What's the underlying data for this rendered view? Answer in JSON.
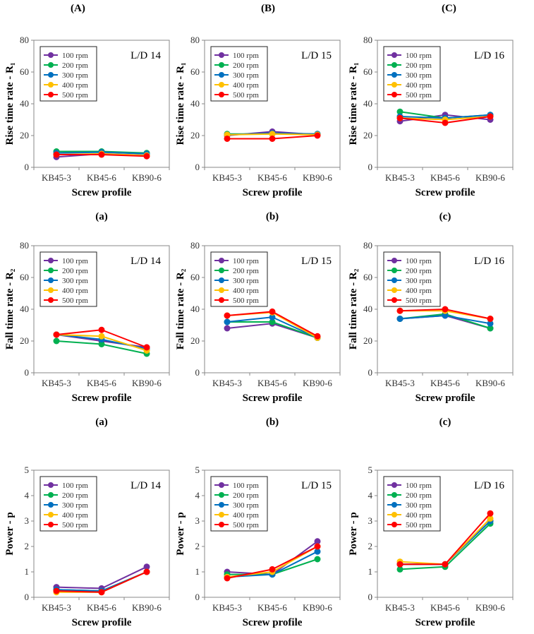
{
  "column_headers": [
    "(A)",
    "(B)",
    "(C)"
  ],
  "colors": {
    "100 rpm": "#7030A0",
    "200 rpm": "#00B050",
    "300 rpm": "#0070C0",
    "400 rpm": "#FFC000",
    "500 rpm": "#FF0000"
  },
  "chart_data": [
    {
      "type": "line",
      "panel_label": "(a)",
      "annotation": "L/D 14",
      "xlabel": "Screw profile",
      "ylabel": "Rise time rate - R₁",
      "ylim": [
        0,
        80
      ],
      "yticks": [
        0,
        20,
        40,
        60,
        80
      ],
      "categories": [
        "KB45-3",
        "KB45-6",
        "KB90-6"
      ],
      "series": [
        {
          "name": "100 rpm",
          "values": [
            6.5,
            8.5,
            7.5
          ]
        },
        {
          "name": "200 rpm",
          "values": [
            10,
            10,
            9
          ]
        },
        {
          "name": "300 rpm",
          "values": [
            9,
            9.5,
            8.5
          ]
        },
        {
          "name": "400 rpm",
          "values": [
            8,
            8.5,
            7.5
          ]
        },
        {
          "name": "500 rpm",
          "values": [
            8,
            8,
            7
          ]
        }
      ]
    },
    {
      "type": "line",
      "panel_label": "(b)",
      "annotation": "L/D 15",
      "xlabel": "Screw profile",
      "ylabel": "Rise time rate - R₁",
      "ylim": [
        0,
        80
      ],
      "yticks": [
        0,
        20,
        40,
        60,
        80
      ],
      "categories": [
        "KB45-3",
        "KB45-6",
        "KB90-6"
      ],
      "series": [
        {
          "name": "100 rpm",
          "values": [
            20,
            22.5,
            20.5
          ]
        },
        {
          "name": "200 rpm",
          "values": [
            21,
            21,
            21
          ]
        },
        {
          "name": "300 rpm",
          "values": [
            20.5,
            21.5,
            21
          ]
        },
        {
          "name": "400 rpm",
          "values": [
            20.5,
            21,
            20.5
          ]
        },
        {
          "name": "500 rpm",
          "values": [
            18,
            18,
            20
          ]
        }
      ]
    },
    {
      "type": "line",
      "panel_label": "(c)",
      "annotation": "L/D 16",
      "xlabel": "Screw profile",
      "ylabel": "Rise time rate - R₁",
      "ylim": [
        0,
        80
      ],
      "yticks": [
        0,
        20,
        40,
        60,
        80
      ],
      "categories": [
        "KB45-3",
        "KB45-6",
        "KB90-6"
      ],
      "series": [
        {
          "name": "100 rpm",
          "values": [
            29,
            33,
            30
          ]
        },
        {
          "name": "200 rpm",
          "values": [
            35,
            31,
            33
          ]
        },
        {
          "name": "300 rpm",
          "values": [
            32,
            31,
            33
          ]
        },
        {
          "name": "400 rpm",
          "values": [
            31,
            30,
            32
          ]
        },
        {
          "name": "500 rpm",
          "values": [
            31,
            28,
            32
          ]
        }
      ]
    },
    {
      "type": "line",
      "panel_label": "(a)",
      "annotation": "L/D 14",
      "xlabel": "Screw profile",
      "ylabel": "Fall time rate - R₂",
      "ylim": [
        0,
        80
      ],
      "yticks": [
        0,
        20,
        40,
        60,
        80
      ],
      "categories": [
        "KB45-3",
        "KB45-6",
        "KB90-6"
      ],
      "series": [
        {
          "name": "100 rpm",
          "values": [
            24,
            20,
            16
          ]
        },
        {
          "name": "200 rpm",
          "values": [
            20,
            18,
            12
          ]
        },
        {
          "name": "300 rpm",
          "values": [
            24,
            21,
            15
          ]
        },
        {
          "name": "400 rpm",
          "values": [
            24,
            23,
            14
          ]
        },
        {
          "name": "500 rpm",
          "values": [
            24,
            27,
            16
          ]
        }
      ]
    },
    {
      "type": "line",
      "panel_label": "(b)",
      "annotation": "L/D 15",
      "xlabel": "Screw profile",
      "ylabel": "Fall time rate - R₂",
      "ylim": [
        0,
        80
      ],
      "yticks": [
        0,
        20,
        40,
        60,
        80
      ],
      "categories": [
        "KB45-3",
        "KB45-6",
        "KB90-6"
      ],
      "series": [
        {
          "name": "100 rpm",
          "values": [
            28,
            31,
            22
          ]
        },
        {
          "name": "200 rpm",
          "values": [
            32,
            32,
            22
          ]
        },
        {
          "name": "300 rpm",
          "values": [
            32,
            35,
            22
          ]
        },
        {
          "name": "400 rpm",
          "values": [
            36,
            38,
            22
          ]
        },
        {
          "name": "500 rpm",
          "values": [
            36,
            38.5,
            23
          ]
        }
      ]
    },
    {
      "type": "line",
      "panel_label": "(c)",
      "annotation": "L/D 16",
      "xlabel": "Screw profile",
      "ylabel": "Fall time rate - R₂",
      "ylim": [
        0,
        80
      ],
      "yticks": [
        0,
        20,
        40,
        60,
        80
      ],
      "categories": [
        "KB45-3",
        "KB45-6",
        "KB90-6"
      ],
      "series": [
        {
          "name": "100 rpm",
          "values": [
            34,
            36,
            28
          ]
        },
        {
          "name": "200 rpm",
          "values": [
            34,
            37,
            28
          ]
        },
        {
          "name": "300 rpm",
          "values": [
            34,
            36,
            31
          ]
        },
        {
          "name": "400 rpm",
          "values": [
            39,
            39,
            34
          ]
        },
        {
          "name": "500 rpm",
          "values": [
            39,
            40,
            34
          ]
        }
      ]
    },
    {
      "type": "line",
      "panel_label": "(a)",
      "annotation": "L/D 14",
      "xlabel": "Screw profile",
      "ylabel": "Power - p",
      "ylim": [
        0,
        5
      ],
      "yticks": [
        0,
        1,
        2,
        3,
        4,
        5
      ],
      "categories": [
        "KB45-3",
        "KB45-6",
        "KB90-6"
      ],
      "series": [
        {
          "name": "100 rpm",
          "values": [
            0.4,
            0.35,
            1.2
          ]
        },
        {
          "name": "200 rpm",
          "values": [
            0.3,
            0.25,
            1.0
          ]
        },
        {
          "name": "300 rpm",
          "values": [
            0.3,
            0.25,
            1.0
          ]
        },
        {
          "name": "400 rpm",
          "values": [
            0.2,
            0.2,
            1.0
          ]
        },
        {
          "name": "500 rpm",
          "values": [
            0.25,
            0.2,
            1.0
          ]
        }
      ]
    },
    {
      "type": "line",
      "panel_label": "(b)",
      "annotation": "L/D 15",
      "xlabel": "Screw profile",
      "ylabel": "Power - p",
      "ylim": [
        0,
        5
      ],
      "yticks": [
        0,
        1,
        2,
        3,
        4,
        5
      ],
      "categories": [
        "KB45-3",
        "KB45-6",
        "KB90-6"
      ],
      "series": [
        {
          "name": "100 rpm",
          "values": [
            1.0,
            0.9,
            2.2
          ]
        },
        {
          "name": "200 rpm",
          "values": [
            0.9,
            0.9,
            1.5
          ]
        },
        {
          "name": "300 rpm",
          "values": [
            0.8,
            0.9,
            1.8
          ]
        },
        {
          "name": "400 rpm",
          "values": [
            0.8,
            1.0,
            2.0
          ]
        },
        {
          "name": "500 rpm",
          "values": [
            0.75,
            1.1,
            2.0
          ]
        }
      ]
    },
    {
      "type": "line",
      "panel_label": "(c)",
      "annotation": "L/D 16",
      "xlabel": "Screw profile",
      "ylabel": "Power - p",
      "ylim": [
        0,
        5
      ],
      "yticks": [
        0,
        1,
        2,
        3,
        4,
        5
      ],
      "categories": [
        "KB45-3",
        "KB45-6",
        "KB90-6"
      ],
      "series": [
        {
          "name": "100 rpm",
          "values": [
            1.3,
            1.3,
            3.0
          ]
        },
        {
          "name": "200 rpm",
          "values": [
            1.1,
            1.2,
            2.9
          ]
        },
        {
          "name": "300 rpm",
          "values": [
            1.3,
            1.3,
            3.0
          ]
        },
        {
          "name": "400 rpm",
          "values": [
            1.4,
            1.3,
            3.1
          ]
        },
        {
          "name": "500 rpm",
          "values": [
            1.3,
            1.3,
            3.3
          ]
        }
      ]
    }
  ]
}
